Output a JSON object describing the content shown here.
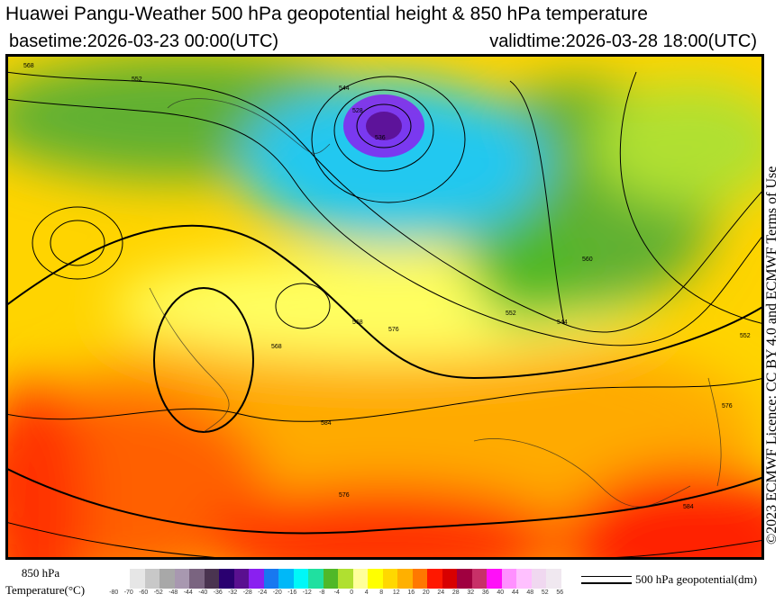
{
  "header": {
    "title": "Huawei Pangu-Weather 500 hPa geopotential height & 850 hPa temperature",
    "basetime": "basetime:2026-03-23 00:00(UTC)",
    "validtime": "validtime:2026-03-28 18:00(UTC)"
  },
  "licence": "©2023 ECMWF Licence: CC BY 4.0 and ECMWF Terms of Use",
  "legend": {
    "temp_label_line1": "850 hPa",
    "temp_label_line2": "Temperature(°C)",
    "ticks": [
      "-80",
      "-70",
      "-60",
      "-52",
      "-48",
      "-44",
      "-40",
      "-36",
      "-32",
      "-28",
      "-24",
      "-20",
      "-16",
      "-12",
      "-8",
      "-4",
      "0",
      "4",
      "8",
      "12",
      "16",
      "20",
      "24",
      "28",
      "32",
      "36",
      "40",
      "44",
      "48",
      "52",
      "56"
    ],
    "colors": [
      "#e6e6e6",
      "#c8c8c8",
      "#a8a8a8",
      "#a898b0",
      "#7a6480",
      "#4a3450",
      "#2a0070",
      "#5a1090",
      "#8a20f0",
      "#1878f0",
      "#00b8f8",
      "#00f8f8",
      "#20e0a0",
      "#50b828",
      "#b0e030",
      "#ffff9a",
      "#ffff00",
      "#ffd800",
      "#ffb000",
      "#ff7800",
      "#ff1800",
      "#d80000",
      "#a00040",
      "#c83068",
      "#ff10f8",
      "#ff90ff",
      "#ffc0ff",
      "#f0d8f0",
      "#f0e8f0"
    ],
    "geo_label": "500 hPa geopotential(dm)"
  },
  "map": {
    "contour_labels": [
      "568",
      "552",
      "544",
      "528",
      "536",
      "552",
      "568",
      "576",
      "584",
      "576",
      "560",
      "544",
      "552",
      "568",
      "576",
      "584"
    ],
    "colors": {
      "cold_low": "#6a20c0",
      "cool": "#20c8f0",
      "green": "#60b030",
      "warm": "#ffe800",
      "hot": "#ff8000",
      "very_hot": "#ff2000"
    }
  }
}
